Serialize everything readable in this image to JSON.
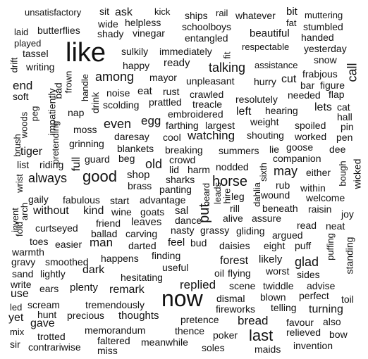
{
  "colors": {
    "background": "#ffffff",
    "text": "#111111"
  },
  "words": {
    "like": "like",
    "now": "now",
    "last": "last",
    "put": "put",
    "good": "good",
    "always": "always",
    "talking": "talking",
    "horse": "horse",
    "replied": "replied",
    "among": "among",
    "bread": "bread",
    "glad": "glad",
    "turning": "turning",
    "remark": "remark",
    "without": "without",
    "watching": "watching",
    "may": "may",
    "old": "old",
    "tiger": "tiger",
    "even": "even",
    "call": "call",
    "end": "end",
    "cut": "cut",
    "lets": "lets",
    "forest": "forest",
    "gave": "gave",
    "yet": "yet",
    "ask": "ask",
    "sit": "sit",
    "full": "full",
    "beautiful": "beautiful",
    "whatever": "whatever",
    "unsatisfactory": "unsatisfactory",
    "kick": "kick",
    "ships": "ships",
    "rail": "rail",
    "bit": "bit",
    "muttering": "muttering",
    "fat": "fat",
    "stumbled": "stumbled",
    "handed": "handed",
    "laid": "laid",
    "butterflies": "butterflies",
    "wide": "wide",
    "helpless": "helpless",
    "schoolboys": "schoolboys",
    "shady": "shady",
    "vinegar": "vinegar",
    "entangled": "entangled",
    "played": "played",
    "respectable": "respectable",
    "yesterday": "yesterday",
    "tassel": "tassel",
    "sulkily": "sulkily",
    "immediately": "immediately",
    "fit": "fit",
    "snow": "snow",
    "drift": "drift",
    "writing": "writing",
    "happy": "happy",
    "ready": "ready",
    "assistance": "assistance",
    "frabjous": "frabjous",
    "mayor": "mayor",
    "hurry": "hurry",
    "bar": "bar",
    "figure": "figure",
    "frown": "frown",
    "handle": "handle",
    "bad": "bad",
    "unpleasant": "unpleasant",
    "soft": "soft",
    "noise": "noise",
    "eat": "eat",
    "rust": "rust",
    "crawled": "crawled",
    "resolutely": "resolutely",
    "needed": "needed",
    "flap": "flap",
    "scolding": "scolding",
    "prattled": "prattled",
    "treacle": "treacle",
    "cat": "cat",
    "hall": "hall",
    "peg": "peg",
    "impatiently": "impatiently",
    "nap": "nap",
    "drink": "drink",
    "embroidered": "embroidered",
    "left": "left",
    "hearing": "hearing",
    "pin": "pin",
    "egg": "egg",
    "farthing": "farthing",
    "largest": "largest",
    "weight": "weight",
    "spoiled": "spoiled",
    "woods": "woods",
    "moss": "moss",
    "pretending": "pretending",
    "daresay": "daresay",
    "cool": "cool",
    "shouting": "shouting",
    "worked": "worked",
    "pen": "pen",
    "brush": "brush",
    "grinning": "grinning",
    "blankets": "blankets",
    "breaking": "breaking",
    "summers": "summers",
    "lie": "lie",
    "goose": "goose",
    "dee": "dee",
    "guard": "guard",
    "beg": "beg",
    "companion": "companion",
    "list": "list",
    "riding": "riding",
    "lid": "lid",
    "harm": "harm",
    "nodded": "nodded",
    "sixth": "sixth",
    "bough": "bough",
    "wicked": "wicked",
    "shop": "shop",
    "crowd": "crowd",
    "either": "either",
    "wrist": "wrist",
    "sharks": "sharks",
    "brass": "brass",
    "panting": "panting",
    "beard": "beard",
    "leads": "leads",
    "hire": "hire",
    "leg": "leg",
    "dahlia": "dahlia",
    "rub": "rub",
    "within": "within",
    "gaily": "gaily",
    "fabulous": "fabulous",
    "start": "start",
    "advantage": "advantage",
    "wound": "wound",
    "welcome": "welcome",
    "arch": "arch",
    "kind": "kind",
    "wine": "wine",
    "goats": "goats",
    "sal": "sal",
    "rill": "rill",
    "beneath": "beneath",
    "raisin": "raisin",
    "joy": "joy",
    "invent": "invent",
    "friend": "friend",
    "leaves": "leaves",
    "dance": "dance",
    "alive": "alive",
    "assure": "assure",
    "read": "read",
    "neat": "neat",
    "fold": "fold",
    "curtseyed": "curtseyed",
    "ballad": "ballad",
    "carving": "carving",
    "nasty": "nasty",
    "grassy": "grassy",
    "gliding": "gliding",
    "argued": "argued",
    "warmth": "warmth",
    "toes": "toes",
    "easier": "easier",
    "man": "man",
    "darted": "darted",
    "feel": "feel",
    "bud": "bud",
    "daisies": "daisies",
    "eight": "eight",
    "puff": "puff",
    "puffing": "puffing",
    "gravy": "gravy",
    "smoothed": "smoothed",
    "happens": "happens",
    "finding": "finding",
    "likely": "likely",
    "standing": "standing",
    "sand": "sand",
    "lightly": "lightly",
    "dark": "dark",
    "useful": "useful",
    "oil": "oil",
    "flying": "flying",
    "worst": "worst",
    "sides": "sides",
    "hesitating": "hesitating",
    "write": "write",
    "scene": "scene",
    "twiddle": "twiddle",
    "advise": "advise",
    "use": "use",
    "ears": "ears",
    "plenty": "plenty",
    "blown": "blown",
    "perfect": "perfect",
    "toil": "toil",
    "led": "led",
    "scream": "scream",
    "tremendously": "tremendously",
    "dismal": "dismal",
    "telling": "telling",
    "hunt": "hunt",
    "precious": "precious",
    "thoughts": "thoughts",
    "fireworks": "fireworks",
    "pretence": "pretence",
    "favour": "favour",
    "also": "also",
    "mix": "mix",
    "memorandum": "memorandum",
    "thence": "thence",
    "relieved": "relieved",
    "bow": "bow",
    "trotted": "trotted",
    "poker": "poker",
    "sir": "sir",
    "contrariwise": "contrariwise",
    "faltered": "faltered",
    "meanwhile": "meanwhile",
    "soles": "soles",
    "invention": "invention",
    "miss": "miss",
    "maids": "maids"
  }
}
